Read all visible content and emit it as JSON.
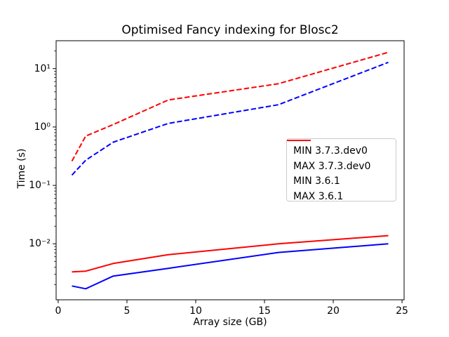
{
  "figure": {
    "title": "Optimised Fancy indexing for Blosc2",
    "xlabel": "Array size (GB)",
    "ylabel": "Time (s)"
  },
  "chart_data": {
    "type": "line",
    "title": "Optimised Fancy indexing for Blosc2",
    "xlabel": "Array size (GB)",
    "ylabel": "Time (s)",
    "x_scale": "linear",
    "y_scale": "log",
    "xlim": [
      -0.15,
      25.15
    ],
    "ylim": [
      0.0011,
      30
    ],
    "grid": false,
    "legend_position": "inside center-right",
    "x": [
      1,
      2,
      4,
      8,
      16,
      24
    ],
    "series": [
      {
        "name": "MIN 3.7.3.dev0",
        "color": "#0000ff",
        "style": "solid",
        "values": [
          0.0019,
          0.0017,
          0.0028,
          0.0038,
          0.0071,
          0.01
        ]
      },
      {
        "name": "MAX 3.7.3.dev0",
        "color": "#0000ff",
        "style": "dashed",
        "values": [
          0.15,
          0.27,
          0.55,
          1.15,
          2.4,
          12.8
        ]
      },
      {
        "name": "MIN 3.6.1",
        "color": "#ff0000",
        "style": "solid",
        "values": [
          0.0033,
          0.0034,
          0.0046,
          0.0065,
          0.01,
          0.0138
        ]
      },
      {
        "name": "MAX 3.6.1",
        "color": "#ff0000",
        "style": "dashed",
        "values": [
          0.26,
          0.7,
          1.1,
          2.9,
          5.5,
          19
        ]
      }
    ],
    "x_ticks": [
      {
        "value": 0,
        "label": "0"
      },
      {
        "value": 5,
        "label": "5"
      },
      {
        "value": 10,
        "label": "10"
      },
      {
        "value": 15,
        "label": "15"
      },
      {
        "value": 20,
        "label": "20"
      },
      {
        "value": 25,
        "label": "25"
      }
    ],
    "y_ticks": [
      {
        "value": 0.01,
        "label": "10⁻²"
      },
      {
        "value": 0.1,
        "label": "10⁻¹"
      },
      {
        "value": 1,
        "label": "10⁰"
      },
      {
        "value": 10,
        "label": "10¹"
      }
    ]
  },
  "colors": {
    "background": "#ffffff",
    "axis": "#000000",
    "text": "#000000",
    "legend_border": "#cccccc",
    "series_blue": "#0000ff",
    "series_red": "#ff0000"
  }
}
